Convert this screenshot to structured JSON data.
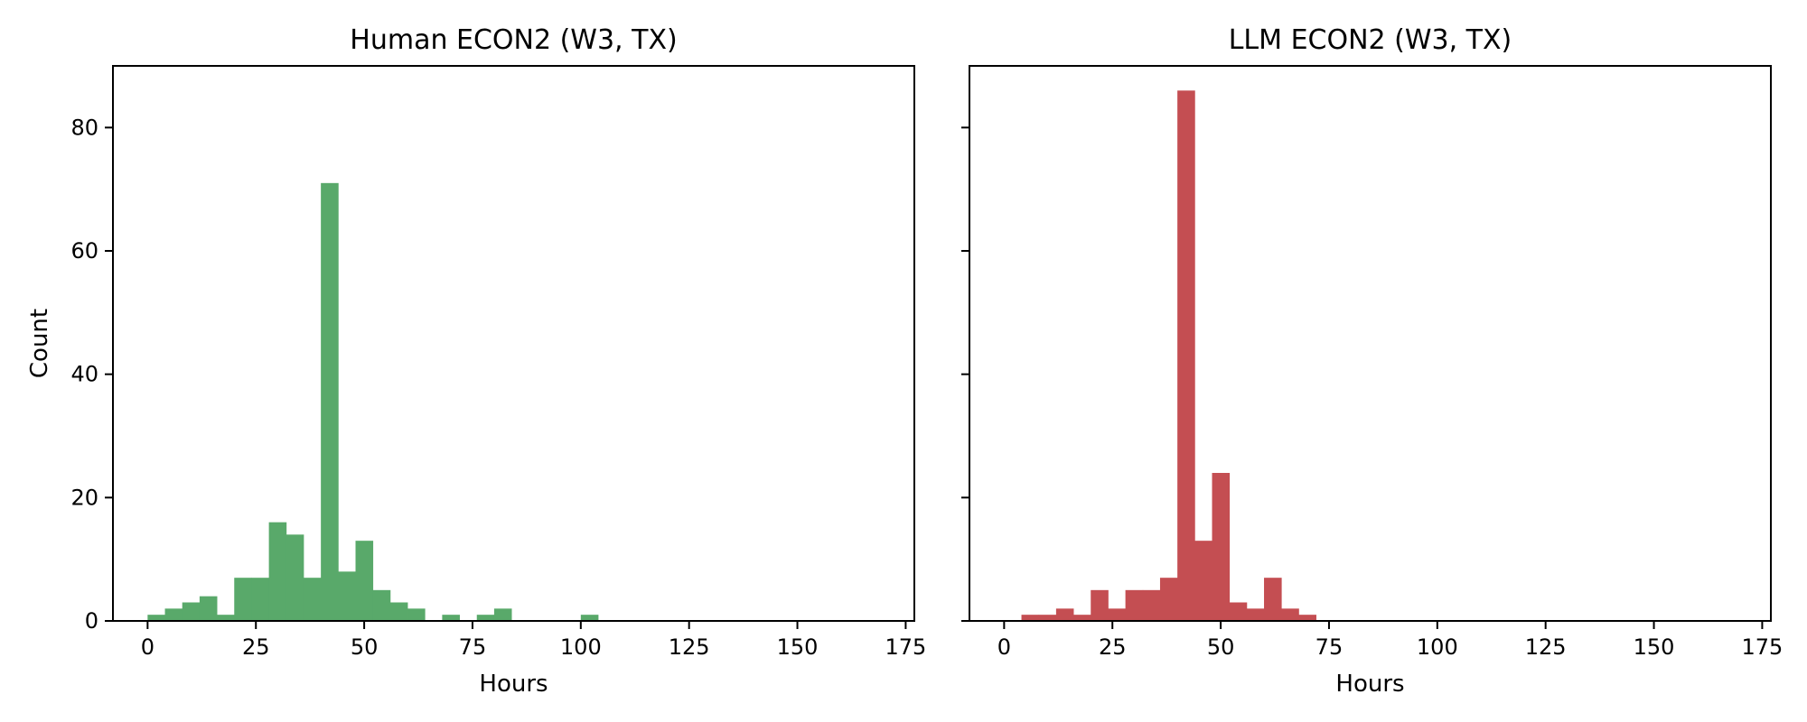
{
  "chart_data": [
    {
      "type": "bar",
      "title": "Human ECON2 (W3, TX)",
      "xlabel": "Hours",
      "ylabel": "Count",
      "xlim": [
        -8,
        177
      ],
      "ylim": [
        0,
        90
      ],
      "xticks": [
        "0",
        "25",
        "50",
        "75",
        "100",
        "125",
        "150",
        "175"
      ],
      "yticks": [
        "0",
        "20",
        "40",
        "60",
        "80"
      ],
      "bin_width": 4,
      "bar_color": "#59a96a",
      "bins": [
        {
          "x0": 0,
          "count": 1
        },
        {
          "x0": 4,
          "count": 2
        },
        {
          "x0": 8,
          "count": 3
        },
        {
          "x0": 12,
          "count": 4
        },
        {
          "x0": 16,
          "count": 1
        },
        {
          "x0": 20,
          "count": 7
        },
        {
          "x0": 24,
          "count": 7
        },
        {
          "x0": 28,
          "count": 16
        },
        {
          "x0": 32,
          "count": 14
        },
        {
          "x0": 36,
          "count": 7
        },
        {
          "x0": 40,
          "count": 71
        },
        {
          "x0": 44,
          "count": 8
        },
        {
          "x0": 48,
          "count": 13
        },
        {
          "x0": 52,
          "count": 5
        },
        {
          "x0": 56,
          "count": 3
        },
        {
          "x0": 60,
          "count": 2
        },
        {
          "x0": 68,
          "count": 1
        },
        {
          "x0": 76,
          "count": 1
        },
        {
          "x0": 80,
          "count": 2
        },
        {
          "x0": 100,
          "count": 1
        }
      ]
    },
    {
      "type": "bar",
      "title": "LLM ECON2 (W3, TX)",
      "xlabel": "Hours",
      "ylabel": "",
      "xlim": [
        -8,
        177
      ],
      "ylim": [
        0,
        90
      ],
      "xticks": [
        "0",
        "25",
        "50",
        "75",
        "100",
        "125",
        "150",
        "175"
      ],
      "yticks": [],
      "bin_width": 4,
      "bar_color": "#c44e52",
      "bins": [
        {
          "x0": 4,
          "count": 1
        },
        {
          "x0": 8,
          "count": 1
        },
        {
          "x0": 12,
          "count": 2
        },
        {
          "x0": 16,
          "count": 1
        },
        {
          "x0": 20,
          "count": 5
        },
        {
          "x0": 24,
          "count": 2
        },
        {
          "x0": 28,
          "count": 5
        },
        {
          "x0": 32,
          "count": 5
        },
        {
          "x0": 36,
          "count": 7
        },
        {
          "x0": 40,
          "count": 86
        },
        {
          "x0": 44,
          "count": 13
        },
        {
          "x0": 48,
          "count": 24
        },
        {
          "x0": 52,
          "count": 3
        },
        {
          "x0": 56,
          "count": 2
        },
        {
          "x0": 60,
          "count": 7
        },
        {
          "x0": 64,
          "count": 2
        },
        {
          "x0": 68,
          "count": 1
        }
      ]
    }
  ]
}
